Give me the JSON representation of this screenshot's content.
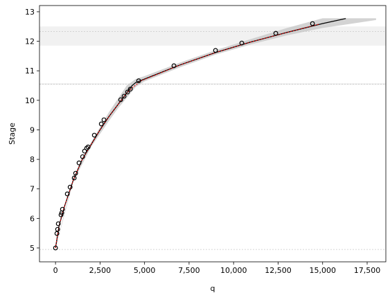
{
  "chart_data": {
    "type": "line",
    "xlabel": "q",
    "ylabel": "Stage",
    "xlim": [
      -900,
      18550
    ],
    "ylim": [
      4.53,
      13.21
    ],
    "xticks": [
      0,
      {
        "value": 2500,
        "label": "2,500"
      },
      {
        "value": 5000,
        "label": "5,000"
      },
      {
        "value": 7500,
        "label": "7,500"
      },
      {
        "value": 10000,
        "label": "10,000"
      },
      {
        "value": 12500,
        "label": "12,500"
      },
      {
        "value": 15000,
        "label": "15,000"
      },
      {
        "value": 17500,
        "label": "17,500"
      }
    ],
    "yticks": [
      5,
      6,
      7,
      8,
      9,
      10,
      11,
      12,
      13
    ],
    "hspans": [
      [
        11.85,
        12.5
      ],
      [
        10.52,
        10.58
      ]
    ],
    "hlines": [
      12.33,
      10.55,
      4.95
    ],
    "band": {
      "color": "#c8c8c8",
      "x": [
        0,
        1000,
        2000,
        3000,
        3500,
        4000,
        4500,
        5000,
        7000,
        9000,
        11000,
        13000,
        15000,
        18000
      ],
      "lower": [
        4.98,
        7.25,
        8.42,
        9.3,
        9.72,
        10.08,
        10.45,
        10.64,
        11.12,
        11.55,
        11.9,
        12.2,
        12.45,
        12.72
      ],
      "upper": [
        5.02,
        7.35,
        8.58,
        9.6,
        10.05,
        10.5,
        10.72,
        10.82,
        11.28,
        11.7,
        12.08,
        12.45,
        12.78,
        12.78
      ]
    },
    "curve": {
      "color": "#000000",
      "x": [
        0,
        200,
        500,
        1000,
        1500,
        2000,
        2500,
        3000,
        3500,
        4000,
        4300,
        4500,
        5000,
        7000,
        9000,
        11000,
        13000,
        15000,
        16300
      ],
      "y": [
        5.0,
        5.75,
        6.4,
        7.3,
        8.0,
        8.5,
        9.0,
        9.45,
        9.85,
        10.25,
        10.5,
        10.6,
        10.72,
        11.2,
        11.62,
        11.98,
        12.3,
        12.6,
        12.77
      ]
    },
    "fit": {
      "color": "#e00000",
      "x": [
        0,
        200,
        500,
        1000,
        1500,
        2000,
        2500,
        3000,
        3500,
        4000,
        4300,
        4800,
        7000,
        9000,
        11000,
        13000,
        14800
      ],
      "y": [
        5.0,
        5.75,
        6.4,
        7.3,
        8.0,
        8.5,
        9.0,
        9.45,
        9.85,
        10.25,
        10.42,
        10.66,
        11.2,
        11.62,
        11.98,
        12.3,
        12.58
      ]
    },
    "points": {
      "color": "#000000",
      "x": [
        0,
        78,
        117,
        155,
        310,
        350,
        390,
        660,
        820,
        1050,
        1130,
        1320,
        1520,
        1630,
        1750,
        1830,
        2180,
        2570,
        2720,
        3660,
        3850,
        4045,
        4200,
        4670,
        6650,
        8985,
        10460,
        12370,
        14430
      ],
      "y": [
        5.0,
        5.49,
        5.63,
        5.82,
        6.12,
        6.19,
        6.31,
        6.83,
        7.06,
        7.37,
        7.53,
        7.88,
        8.09,
        8.28,
        8.38,
        8.42,
        8.82,
        9.2,
        9.34,
        10.02,
        10.14,
        10.28,
        10.38,
        10.66,
        11.17,
        11.69,
        11.94,
        12.27,
        12.6
      ]
    }
  }
}
